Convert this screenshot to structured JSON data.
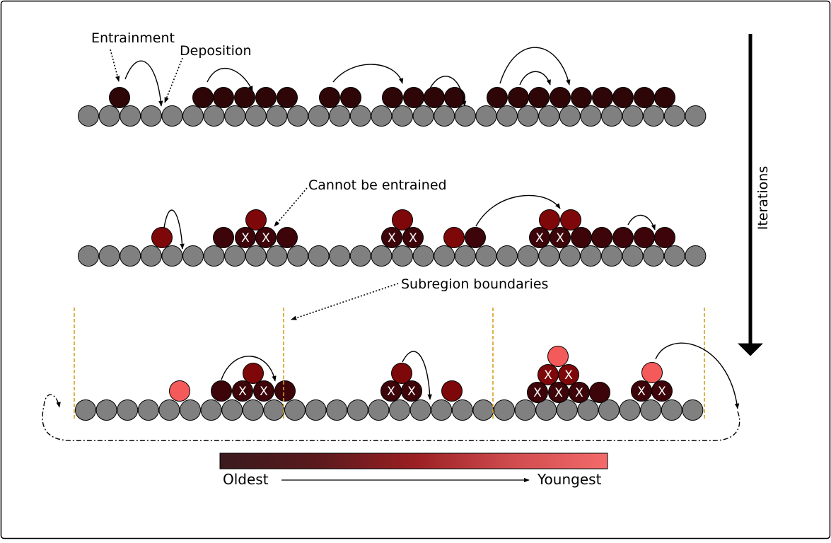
{
  "labels": {
    "entrainment": "Entrainment",
    "deposition": "Deposition",
    "cannot_entrain": "Cannot be entrained",
    "subregion": "Subregion boundaries",
    "iterations": "Iterations"
  },
  "legend": {
    "oldest": "Oldest",
    "youngest": "Youngest",
    "color_oldest": "#3a1a1d",
    "color_youngest": "#f46a6a"
  },
  "grain_colors": {
    "bed": "#808080",
    "oldest": "#2e0608",
    "old": "#3d0509",
    "mid": "#7e0709",
    "young": "#f45a5a"
  },
  "lock_mark": "X",
  "colors": {
    "boundary": "#d4a017",
    "outline": "#000000"
  }
}
